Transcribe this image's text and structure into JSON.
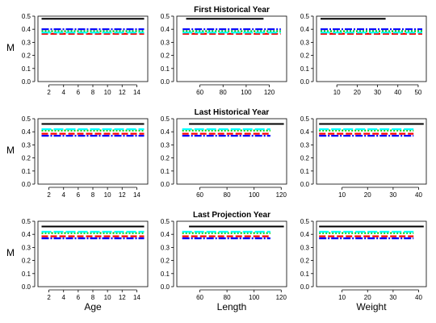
{
  "row_titles": [
    "First Historical Year",
    "Last Historical Year",
    "Last Projection Year"
  ],
  "ylabel": "M",
  "xlabels": [
    "Age",
    "Length",
    "Weight"
  ],
  "colors": {
    "black": "#000000",
    "red": "#ff0000",
    "green": "#00cd00",
    "blue": "#0000ff",
    "cyan": "#00ffff"
  },
  "chart_data": [
    {
      "type": "line",
      "row": 0,
      "col": 0,
      "xlim": [
        0.5,
        15.5
      ],
      "ylim": [
        0,
        0.5
      ],
      "xticks": [
        2,
        4,
        6,
        8,
        10,
        12,
        14
      ],
      "yticks": [
        0.0,
        0.1,
        0.2,
        0.3,
        0.4,
        0.5
      ],
      "series": [
        {
          "color": "black",
          "style": "solid",
          "x": [
            1,
            15
          ],
          "y": [
            0.48,
            0.48
          ]
        },
        {
          "color": "red",
          "style": "dashed",
          "x": [
            1,
            15
          ],
          "y": [
            0.365,
            0.365
          ]
        },
        {
          "color": "green",
          "style": "dotted",
          "x": [
            1,
            15
          ],
          "y": [
            0.385,
            0.385
          ]
        },
        {
          "color": "blue",
          "style": "dotdash",
          "x": [
            1,
            15
          ],
          "y": [
            0.4,
            0.4
          ]
        },
        {
          "color": "cyan",
          "style": "longdash",
          "x": [
            1,
            15
          ],
          "y": [
            0.375,
            0.375
          ]
        }
      ]
    },
    {
      "type": "line",
      "row": 0,
      "col": 1,
      "xlim": [
        40,
        135
      ],
      "ylim": [
        0,
        0.5
      ],
      "xticks": [
        60,
        80,
        100,
        120
      ],
      "yticks": [
        0.0,
        0.1,
        0.2,
        0.3,
        0.4,
        0.5
      ],
      "series": [
        {
          "color": "black",
          "style": "solid",
          "x": [
            48,
            115
          ],
          "y": [
            0.48,
            0.48
          ]
        },
        {
          "color": "red",
          "style": "dashed",
          "x": [
            45,
            130
          ],
          "y": [
            0.365,
            0.365
          ]
        },
        {
          "color": "green",
          "style": "dotted",
          "x": [
            45,
            130
          ],
          "y": [
            0.385,
            0.385
          ]
        },
        {
          "color": "blue",
          "style": "dotdash",
          "x": [
            45,
            130
          ],
          "y": [
            0.4,
            0.4
          ]
        },
        {
          "color": "cyan",
          "style": "longdash",
          "x": [
            45,
            130
          ],
          "y": [
            0.375,
            0.375
          ]
        }
      ]
    },
    {
      "type": "line",
      "row": 0,
      "col": 2,
      "xlim": [
        0,
        54
      ],
      "ylim": [
        0,
        0.5
      ],
      "xticks": [
        10,
        20,
        30,
        40,
        50
      ],
      "yticks": [
        0.0,
        0.1,
        0.2,
        0.3,
        0.4,
        0.5
      ],
      "series": [
        {
          "color": "black",
          "style": "solid",
          "x": [
            2,
            34
          ],
          "y": [
            0.48,
            0.48
          ]
        },
        {
          "color": "red",
          "style": "dashed",
          "x": [
            2,
            52
          ],
          "y": [
            0.365,
            0.365
          ]
        },
        {
          "color": "green",
          "style": "dotted",
          "x": [
            2,
            52
          ],
          "y": [
            0.385,
            0.385
          ]
        },
        {
          "color": "blue",
          "style": "dotdash",
          "x": [
            2,
            52
          ],
          "y": [
            0.4,
            0.4
          ]
        },
        {
          "color": "cyan",
          "style": "longdash",
          "x": [
            2,
            52
          ],
          "y": [
            0.375,
            0.375
          ]
        }
      ]
    },
    {
      "type": "line",
      "row": 1,
      "col": 0,
      "xlim": [
        0.5,
        15.5
      ],
      "ylim": [
        0,
        0.5
      ],
      "xticks": [
        2,
        4,
        6,
        8,
        10,
        12,
        14
      ],
      "yticks": [
        0.0,
        0.1,
        0.2,
        0.3,
        0.4,
        0.5
      ],
      "series": [
        {
          "color": "black",
          "style": "solid",
          "x": [
            1,
            15
          ],
          "y": [
            0.46,
            0.46
          ]
        },
        {
          "color": "red",
          "style": "dashed",
          "x": [
            1,
            15
          ],
          "y": [
            0.385,
            0.385
          ]
        },
        {
          "color": "green",
          "style": "dotted",
          "x": [
            1,
            15
          ],
          "y": [
            0.41,
            0.41
          ]
        },
        {
          "color": "blue",
          "style": "dotdash",
          "x": [
            1,
            15
          ],
          "y": [
            0.37,
            0.37
          ]
        },
        {
          "color": "cyan",
          "style": "longdash",
          "x": [
            1,
            15
          ],
          "y": [
            0.42,
            0.42
          ]
        }
      ]
    },
    {
      "type": "line",
      "row": 1,
      "col": 1,
      "xlim": [
        43,
        124
      ],
      "ylim": [
        0,
        0.5
      ],
      "xticks": [
        60,
        80,
        100,
        120
      ],
      "yticks": [
        0.0,
        0.1,
        0.2,
        0.3,
        0.4,
        0.5
      ],
      "series": [
        {
          "color": "black",
          "style": "solid",
          "x": [
            52,
            122
          ],
          "y": [
            0.46,
            0.46
          ]
        },
        {
          "color": "red",
          "style": "dashed",
          "x": [
            47,
            112
          ],
          "y": [
            0.385,
            0.385
          ]
        },
        {
          "color": "green",
          "style": "dotted",
          "x": [
            47,
            112
          ],
          "y": [
            0.41,
            0.41
          ]
        },
        {
          "color": "blue",
          "style": "dotdash",
          "x": [
            47,
            112
          ],
          "y": [
            0.37,
            0.37
          ]
        },
        {
          "color": "cyan",
          "style": "longdash",
          "x": [
            47,
            112
          ],
          "y": [
            0.42,
            0.42
          ]
        }
      ]
    },
    {
      "type": "line",
      "row": 1,
      "col": 2,
      "xlim": [
        0,
        43
      ],
      "ylim": [
        0,
        0.5
      ],
      "xticks": [
        10,
        20,
        30,
        40
      ],
      "yticks": [
        0.0,
        0.1,
        0.2,
        0.3,
        0.4,
        0.5
      ],
      "series": [
        {
          "color": "black",
          "style": "solid",
          "x": [
            1,
            42
          ],
          "y": [
            0.46,
            0.46
          ]
        },
        {
          "color": "red",
          "style": "dashed",
          "x": [
            1,
            38
          ],
          "y": [
            0.385,
            0.385
          ]
        },
        {
          "color": "green",
          "style": "dotted",
          "x": [
            1,
            38
          ],
          "y": [
            0.41,
            0.41
          ]
        },
        {
          "color": "blue",
          "style": "dotdash",
          "x": [
            1,
            38
          ],
          "y": [
            0.37,
            0.37
          ]
        },
        {
          "color": "cyan",
          "style": "longdash",
          "x": [
            1,
            38
          ],
          "y": [
            0.42,
            0.42
          ]
        }
      ]
    },
    {
      "type": "line",
      "row": 2,
      "col": 0,
      "xlim": [
        0.5,
        15.5
      ],
      "ylim": [
        0,
        0.5
      ],
      "xticks": [
        2,
        4,
        6,
        8,
        10,
        12,
        14
      ],
      "yticks": [
        0.0,
        0.1,
        0.2,
        0.3,
        0.4,
        0.5
      ],
      "series": [
        {
          "color": "black",
          "style": "solid",
          "x": [
            1,
            15
          ],
          "y": [
            0.46,
            0.46
          ]
        },
        {
          "color": "red",
          "style": "dashed",
          "x": [
            1,
            15
          ],
          "y": [
            0.385,
            0.385
          ]
        },
        {
          "color": "green",
          "style": "dotted",
          "x": [
            1,
            15
          ],
          "y": [
            0.41,
            0.41
          ]
        },
        {
          "color": "blue",
          "style": "dotdash",
          "x": [
            1,
            15
          ],
          "y": [
            0.37,
            0.37
          ]
        },
        {
          "color": "cyan",
          "style": "longdash",
          "x": [
            1,
            15
          ],
          "y": [
            0.42,
            0.42
          ]
        }
      ]
    },
    {
      "type": "line",
      "row": 2,
      "col": 1,
      "xlim": [
        43,
        124
      ],
      "ylim": [
        0,
        0.5
      ],
      "xticks": [
        60,
        80,
        100,
        120
      ],
      "yticks": [
        0.0,
        0.1,
        0.2,
        0.3,
        0.4,
        0.5
      ],
      "series": [
        {
          "color": "black",
          "style": "solid",
          "x": [
            52,
            122
          ],
          "y": [
            0.46,
            0.46
          ]
        },
        {
          "color": "red",
          "style": "dashed",
          "x": [
            47,
            112
          ],
          "y": [
            0.385,
            0.385
          ]
        },
        {
          "color": "green",
          "style": "dotted",
          "x": [
            47,
            112
          ],
          "y": [
            0.41,
            0.41
          ]
        },
        {
          "color": "blue",
          "style": "dotdash",
          "x": [
            47,
            112
          ],
          "y": [
            0.37,
            0.37
          ]
        },
        {
          "color": "cyan",
          "style": "longdash",
          "x": [
            47,
            112
          ],
          "y": [
            0.42,
            0.42
          ]
        }
      ]
    },
    {
      "type": "line",
      "row": 2,
      "col": 2,
      "xlim": [
        0,
        43
      ],
      "ylim": [
        0,
        0.5
      ],
      "xticks": [
        10,
        20,
        30,
        40
      ],
      "yticks": [
        0.0,
        0.1,
        0.2,
        0.3,
        0.4,
        0.5
      ],
      "series": [
        {
          "color": "black",
          "style": "solid",
          "x": [
            1,
            42
          ],
          "y": [
            0.46,
            0.46
          ]
        },
        {
          "color": "red",
          "style": "dashed",
          "x": [
            1,
            38
          ],
          "y": [
            0.385,
            0.385
          ]
        },
        {
          "color": "green",
          "style": "dotted",
          "x": [
            1,
            38
          ],
          "y": [
            0.41,
            0.41
          ]
        },
        {
          "color": "blue",
          "style": "dotdash",
          "x": [
            1,
            38
          ],
          "y": [
            0.37,
            0.37
          ]
        },
        {
          "color": "cyan",
          "style": "longdash",
          "x": [
            1,
            38
          ],
          "y": [
            0.42,
            0.42
          ]
        }
      ]
    }
  ]
}
